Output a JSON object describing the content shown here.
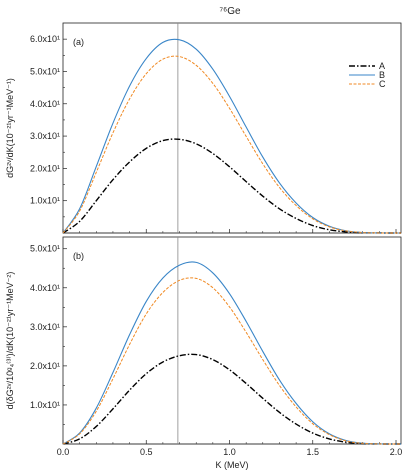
{
  "title": "⁷⁶Ge",
  "colors": {
    "A": "#000000",
    "B": "#3a86c8",
    "C": "#f08a24",
    "vline": "#888888",
    "axis": "#222222"
  },
  "chart_data": [
    {
      "type": "line",
      "panel_label": "(a)",
      "xlabel": "",
      "ylabel": "dG²ᵛ/dK(10⁻²¹yr⁻¹MeV⁻¹)",
      "xlim": [
        0,
        2.03
      ],
      "ylim": [
        0,
        65
      ],
      "x_ticks": [
        "0.0",
        "0.5",
        "1.0",
        "1.5",
        "2.0"
      ],
      "y_ticks": [
        {
          "value": 10,
          "label": "1.0x10¹"
        },
        {
          "value": 20,
          "label": "2.0x10¹"
        },
        {
          "value": 30,
          "label": "3.0x10¹"
        },
        {
          "value": 40,
          "label": "4.0x10¹"
        },
        {
          "value": 50,
          "label": "5.0x10¹"
        },
        {
          "value": 60,
          "label": "6.0x10¹"
        }
      ],
      "vline_x": 0.69,
      "legend": {
        "placement": "top-right",
        "entries": [
          "A",
          "B",
          "C"
        ]
      },
      "series": [
        {
          "name": "A",
          "x": [
            0,
            0.1,
            0.2,
            0.3,
            0.4,
            0.5,
            0.6,
            0.7,
            0.8,
            0.9,
            1.0,
            1.1,
            1.2,
            1.3,
            1.4,
            1.5,
            1.6,
            1.7,
            1.8,
            1.9,
            2.0,
            2.03
          ],
          "y": [
            0,
            3.6,
            10.0,
            16.5,
            22.0,
            26.2,
            28.6,
            29.0,
            27.6,
            24.6,
            20.5,
            15.9,
            11.4,
            7.5,
            4.5,
            2.3,
            1.0,
            0.35,
            0.08,
            0.01,
            0,
            0
          ]
        },
        {
          "name": "B",
          "x": [
            0,
            0.1,
            0.2,
            0.3,
            0.4,
            0.5,
            0.6,
            0.7,
            0.8,
            0.9,
            1.0,
            1.1,
            1.2,
            1.3,
            1.4,
            1.5,
            1.6,
            1.7,
            1.8,
            1.9,
            2.0,
            2.03
          ],
          "y": [
            0,
            7.5,
            20.6,
            34.0,
            45.5,
            54.0,
            59.0,
            59.8,
            56.9,
            50.7,
            42.3,
            32.8,
            23.5,
            15.5,
            9.3,
            4.8,
            2.1,
            0.7,
            0.15,
            0.02,
            0,
            0
          ]
        },
        {
          "name": "C",
          "x": [
            0,
            0.1,
            0.2,
            0.3,
            0.4,
            0.5,
            0.6,
            0.7,
            0.8,
            0.9,
            1.0,
            1.1,
            1.2,
            1.3,
            1.4,
            1.5,
            1.6,
            1.7,
            1.8,
            1.9,
            2.0,
            2.03
          ],
          "y": [
            0,
            6.8,
            18.8,
            31.0,
            41.5,
            49.3,
            53.8,
            54.6,
            51.9,
            46.3,
            38.6,
            29.9,
            21.4,
            14.1,
            8.5,
            4.4,
            1.9,
            0.65,
            0.14,
            0.02,
            0,
            0
          ]
        }
      ]
    },
    {
      "type": "line",
      "panel_label": "(b)",
      "xlabel": "K (MeV)",
      "ylabel": "d(δG²ᵛ/10ᵍ₄⁽³⁾)/dK(10⁻²¹yr⁻¹MeV⁻²)",
      "xlim": [
        0,
        2.03
      ],
      "ylim": [
        0,
        53
      ],
      "x_ticks": [
        "0.0",
        "0.5",
        "1.0",
        "1.5",
        "2.0"
      ],
      "y_ticks": [
        {
          "value": 10,
          "label": "1.0x10¹"
        },
        {
          "value": 20,
          "label": "2.0x10¹"
        },
        {
          "value": 30,
          "label": "3.0x10¹"
        },
        {
          "value": 40,
          "label": "4.0x10¹"
        },
        {
          "value": 50,
          "label": "5.0x10¹"
        }
      ],
      "vline_x": 0.69,
      "series": [
        {
          "name": "A",
          "x": [
            0,
            0.1,
            0.2,
            0.3,
            0.4,
            0.5,
            0.6,
            0.7,
            0.8,
            0.9,
            1.0,
            1.1,
            1.2,
            1.3,
            1.4,
            1.5,
            1.6,
            1.7,
            1.8,
            1.9,
            2.0,
            2.03
          ],
          "y": [
            0,
            1.3,
            4.5,
            9.0,
            13.8,
            18.0,
            21.0,
            22.6,
            22.9,
            21.6,
            19.0,
            15.5,
            11.7,
            8.1,
            5.1,
            2.8,
            1.3,
            0.45,
            0.1,
            0.01,
            0,
            0
          ]
        },
        {
          "name": "B",
          "x": [
            0,
            0.1,
            0.2,
            0.3,
            0.4,
            0.5,
            0.6,
            0.7,
            0.8,
            0.9,
            1.0,
            1.1,
            1.2,
            1.3,
            1.4,
            1.5,
            1.6,
            1.7,
            1.8,
            1.9,
            2.0,
            2.03
          ],
          "y": [
            0,
            2.8,
            9.2,
            18.3,
            28.0,
            36.5,
            42.5,
            45.8,
            46.5,
            43.8,
            38.5,
            31.4,
            23.7,
            16.4,
            10.4,
            5.7,
            2.6,
            0.9,
            0.2,
            0.02,
            0,
            0
          ]
        },
        {
          "name": "C",
          "x": [
            0,
            0.1,
            0.2,
            0.3,
            0.4,
            0.5,
            0.6,
            0.7,
            0.8,
            0.9,
            1.0,
            1.1,
            1.2,
            1.3,
            1.4,
            1.5,
            1.6,
            1.7,
            1.8,
            1.9,
            2.0,
            2.03
          ],
          "y": [
            0,
            2.6,
            8.4,
            16.7,
            25.5,
            33.3,
            38.8,
            41.9,
            42.4,
            40.0,
            35.1,
            28.6,
            21.6,
            15.0,
            9.5,
            5.2,
            2.4,
            0.8,
            0.18,
            0.02,
            0,
            0
          ]
        }
      ]
    }
  ]
}
